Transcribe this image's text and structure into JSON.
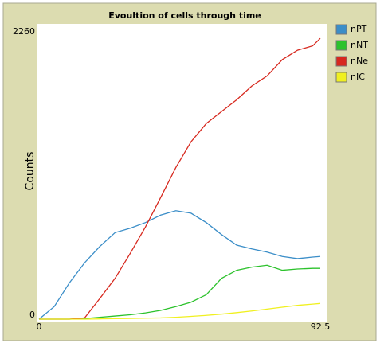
{
  "chart_data": {
    "type": "line",
    "title": "Evoultion of cells through time",
    "y_label": "Counts",
    "x": [
      0,
      5,
      10,
      15,
      20,
      25,
      30,
      35,
      40,
      45,
      50,
      55,
      60,
      65,
      70,
      75,
      80,
      85,
      90,
      92.5
    ],
    "series": [
      {
        "name": "nPT",
        "color": "#3b8ec8",
        "values": [
          0,
          100,
          290,
          450,
          580,
          690,
          725,
          770,
          830,
          865,
          845,
          770,
          675,
          590,
          560,
          535,
          500,
          483,
          495,
          500
        ]
      },
      {
        "name": "nNT",
        "color": "#2cc22c",
        "values": [
          0,
          0,
          0,
          5,
          15,
          25,
          35,
          50,
          70,
          100,
          135,
          195,
          325,
          390,
          415,
          430,
          390,
          400,
          405,
          405
        ]
      },
      {
        "name": "nNe",
        "color": "#d7291f",
        "values": [
          0,
          0,
          0,
          10,
          165,
          325,
          525,
          735,
          970,
          1210,
          1415,
          1560,
          1655,
          1750,
          1860,
          1940,
          2070,
          2145,
          2180,
          2240
        ]
      },
      {
        "name": "nIC",
        "color": "#f0f020",
        "values": [
          0,
          0,
          0,
          0,
          2,
          4,
          6,
          8,
          10,
          15,
          22,
          30,
          40,
          52,
          65,
          80,
          95,
          110,
          120,
          125
        ]
      }
    ],
    "xlim": [
      0,
      92.5
    ],
    "ylim": [
      0,
      2260
    ],
    "xticks": [
      0,
      92.5
    ],
    "yticks": [
      0,
      2260
    ],
    "legend": "right"
  }
}
